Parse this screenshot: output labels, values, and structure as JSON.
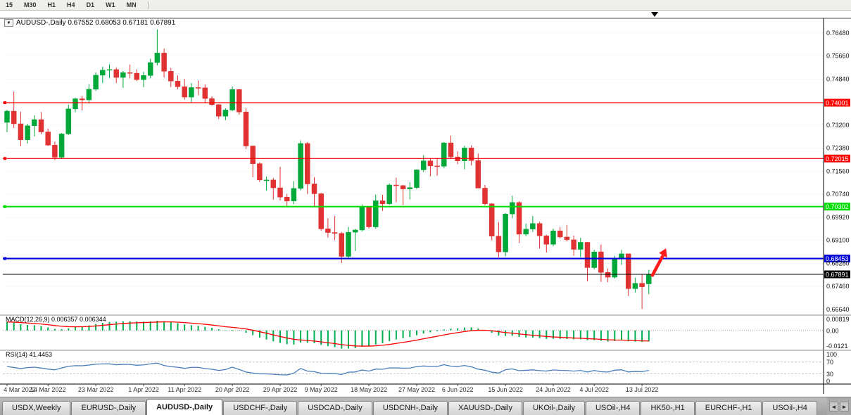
{
  "toolbar": {
    "timeframes": [
      "15",
      "M30",
      "H1",
      "H4",
      "D1",
      "W1",
      "MN"
    ]
  },
  "chart": {
    "title": "AUDUSD-,Daily 0.67552 0.68053 0.67181 0.67891",
    "collapse_icon": "▼",
    "shift_marker_icon": "▼"
  },
  "chart_data": {
    "type": "candlestick",
    "symbol": "AUDUSD-",
    "timeframe": "Daily",
    "last_bar": {
      "open": 0.67552,
      "high": 0.68053,
      "low": 0.67181,
      "close": 0.67891
    },
    "price_axis_labels": [
      "0.76480",
      "0.75660",
      "0.74840",
      "0.73200",
      "0.72380",
      "0.71560",
      "0.70740",
      "0.69920",
      "0.69100",
      "0.68280",
      "0.67460",
      "0.66640"
    ],
    "x_tick_labels": [
      "4 Mar 2022",
      "14 Mar 2022",
      "23 Mar 2022",
      "1 Apr 2022",
      "11 Apr 2022",
      "20 Apr 2022",
      "29 Apr 2022",
      "9 May 2022",
      "18 May 2022",
      "27 May 2022",
      "6 Jun 2022",
      "15 Jun 2022",
      "24 Jun 2022",
      "4 Jul 2022",
      "13 Jul 2022"
    ],
    "x_tick_indices": [
      0,
      6,
      13,
      20,
      26,
      33,
      40,
      46,
      53,
      60,
      66,
      73,
      80,
      86,
      93
    ],
    "candles_ohlc": [
      [
        0.733,
        0.7375,
        0.7295,
        0.737
      ],
      [
        0.737,
        0.744,
        0.731,
        0.7325
      ],
      [
        0.7325,
        0.7368,
        0.7245,
        0.7268
      ],
      [
        0.7268,
        0.7325,
        0.7255,
        0.7318
      ],
      [
        0.7318,
        0.7355,
        0.728,
        0.734
      ],
      [
        0.734,
        0.7367,
        0.7288,
        0.7296
      ],
      [
        0.7296,
        0.7308,
        0.7246,
        0.7249
      ],
      [
        0.7249,
        0.7262,
        0.7195,
        0.7206
      ],
      [
        0.7206,
        0.7292,
        0.72,
        0.7289
      ],
      [
        0.7289,
        0.7393,
        0.7285,
        0.7378
      ],
      [
        0.7378,
        0.7418,
        0.7366,
        0.7414
      ],
      [
        0.7414,
        0.7425,
        0.7373,
        0.741
      ],
      [
        0.741,
        0.7466,
        0.7397,
        0.7448
      ],
      [
        0.7448,
        0.7508,
        0.7442,
        0.7498
      ],
      [
        0.7498,
        0.7528,
        0.747,
        0.7516
      ],
      [
        0.7516,
        0.7537,
        0.7488,
        0.7518
      ],
      [
        0.7518,
        0.7526,
        0.747,
        0.749
      ],
      [
        0.749,
        0.7513,
        0.7453,
        0.7507
      ],
      [
        0.7507,
        0.7536,
        0.7487,
        0.7505
      ],
      [
        0.7505,
        0.7519,
        0.7477,
        0.7482
      ],
      [
        0.7482,
        0.751,
        0.7455,
        0.7497
      ],
      [
        0.7497,
        0.7557,
        0.7487,
        0.7543
      ],
      [
        0.7543,
        0.7661,
        0.7533,
        0.7577
      ],
      [
        0.7577,
        0.7593,
        0.749,
        0.7512
      ],
      [
        0.7512,
        0.7524,
        0.7456,
        0.7477
      ],
      [
        0.7477,
        0.7497,
        0.7448,
        0.7457
      ],
      [
        0.7457,
        0.7485,
        0.7411,
        0.742
      ],
      [
        0.742,
        0.747,
        0.7399,
        0.7454
      ],
      [
        0.7454,
        0.7479,
        0.7427,
        0.7453
      ],
      [
        0.7453,
        0.7465,
        0.7398,
        0.7415
      ],
      [
        0.7415,
        0.7423,
        0.7389,
        0.7393
      ],
      [
        0.7393,
        0.7395,
        0.7342,
        0.7352
      ],
      [
        0.7352,
        0.738,
        0.7338,
        0.7374
      ],
      [
        0.7374,
        0.7458,
        0.737,
        0.7447
      ],
      [
        0.7447,
        0.7449,
        0.7357,
        0.7367
      ],
      [
        0.7367,
        0.7381,
        0.7235,
        0.7246
      ],
      [
        0.7246,
        0.7247,
        0.7135,
        0.7183
      ],
      [
        0.7183,
        0.7188,
        0.7118,
        0.7125
      ],
      [
        0.7125,
        0.7137,
        0.7087,
        0.7125
      ],
      [
        0.7125,
        0.7132,
        0.7055,
        0.7097
      ],
      [
        0.7097,
        0.7172,
        0.7052,
        0.7064
      ],
      [
        0.7064,
        0.7076,
        0.7029,
        0.705
      ],
      [
        0.705,
        0.7121,
        0.7039,
        0.7095
      ],
      [
        0.7095,
        0.7266,
        0.7088,
        0.7255
      ],
      [
        0.7255,
        0.726,
        0.7075,
        0.7111
      ],
      [
        0.7111,
        0.7135,
        0.7032,
        0.7076
      ],
      [
        0.7076,
        0.7079,
        0.6945,
        0.6951
      ],
      [
        0.6951,
        0.6989,
        0.692,
        0.6938
      ],
      [
        0.6938,
        0.6997,
        0.6911,
        0.6935
      ],
      [
        0.6935,
        0.694,
        0.6829,
        0.6853
      ],
      [
        0.6853,
        0.6958,
        0.6847,
        0.6939
      ],
      [
        0.6939,
        0.6951,
        0.6872,
        0.6947
      ],
      [
        0.6947,
        0.7038,
        0.6942,
        0.7029
      ],
      [
        0.7029,
        0.7032,
        0.6952,
        0.6958
      ],
      [
        0.6958,
        0.7073,
        0.6951,
        0.7051
      ],
      [
        0.7051,
        0.7072,
        0.7015,
        0.704
      ],
      [
        0.704,
        0.7113,
        0.7037,
        0.7107
      ],
      [
        0.7107,
        0.7133,
        0.7046,
        0.7105
      ],
      [
        0.7105,
        0.7107,
        0.7036,
        0.7093
      ],
      [
        0.7093,
        0.7117,
        0.7056,
        0.7098
      ],
      [
        0.7098,
        0.7163,
        0.7093,
        0.7161
      ],
      [
        0.7161,
        0.7213,
        0.7154,
        0.7193
      ],
      [
        0.7193,
        0.7203,
        0.7138,
        0.7175
      ],
      [
        0.7175,
        0.7203,
        0.714,
        0.7174
      ],
      [
        0.7174,
        0.726,
        0.7167,
        0.7257
      ],
      [
        0.7257,
        0.7283,
        0.72,
        0.7207
      ],
      [
        0.7207,
        0.7227,
        0.7181,
        0.7193
      ],
      [
        0.7193,
        0.7247,
        0.7163,
        0.7239
      ],
      [
        0.7239,
        0.7248,
        0.7177,
        0.7194
      ],
      [
        0.7194,
        0.7219,
        0.7097,
        0.7096
      ],
      [
        0.7096,
        0.7107,
        0.7035,
        0.704
      ],
      [
        0.704,
        0.7043,
        0.691,
        0.6925
      ],
      [
        0.6925,
        0.6975,
        0.685,
        0.6869
      ],
      [
        0.6869,
        0.7007,
        0.6853,
        0.7004
      ],
      [
        0.7004,
        0.7069,
        0.6989,
        0.7045
      ],
      [
        0.7045,
        0.7049,
        0.6901,
        0.6932
      ],
      [
        0.6932,
        0.697,
        0.6925,
        0.695
      ],
      [
        0.695,
        0.6997,
        0.694,
        0.697
      ],
      [
        0.697,
        0.6976,
        0.6881,
        0.6926
      ],
      [
        0.6926,
        0.693,
        0.6867,
        0.6896
      ],
      [
        0.6896,
        0.6952,
        0.6889,
        0.6944
      ],
      [
        0.6944,
        0.6958,
        0.6917,
        0.6922
      ],
      [
        0.6922,
        0.6965,
        0.6906,
        0.6912
      ],
      [
        0.6912,
        0.6927,
        0.6855,
        0.6878
      ],
      [
        0.6878,
        0.6919,
        0.685,
        0.6903
      ],
      [
        0.6903,
        0.6905,
        0.6764,
        0.6813
      ],
      [
        0.6813,
        0.6876,
        0.6807,
        0.6869
      ],
      [
        0.6869,
        0.6895,
        0.6762,
        0.6796
      ],
      [
        0.6796,
        0.681,
        0.6761,
        0.6779
      ],
      [
        0.6779,
        0.6855,
        0.6774,
        0.6845
      ],
      [
        0.6845,
        0.6876,
        0.6823,
        0.6862
      ],
      [
        0.6862,
        0.6863,
        0.6712,
        0.6738
      ],
      [
        0.6738,
        0.6777,
        0.6724,
        0.6757
      ],
      [
        0.6757,
        0.6788,
        0.6666,
        0.6745
      ],
      [
        0.67552,
        0.68053,
        0.67181,
        0.67891
      ]
    ],
    "horizontal_lines": [
      {
        "value": 0.74001,
        "label": "0.74001",
        "color": "#FF0000",
        "width": 1.2
      },
      {
        "value": 0.72015,
        "label": "0.72015",
        "color": "#FF0000",
        "width": 1.2
      },
      {
        "value": 0.70302,
        "label": "0.70302",
        "color": "#00DD00",
        "width": 2
      },
      {
        "value": 0.68453,
        "label": "0.68453",
        "color": "#0000D8",
        "width": 2.2
      }
    ],
    "bid_price": {
      "value": 0.67891,
      "label": "0.67891",
      "color": "#000000"
    },
    "annotations": {
      "trend_arrow": {
        "shape": "up-right-arrow",
        "color": "#FF1A1A"
      }
    },
    "colors": {
      "up": "#00A83A",
      "down": "#E03232",
      "background": "#FFFFFF",
      "axis_text": "#111111"
    }
  },
  "indicators": {
    "macd": {
      "label": "MACD(12,26,9) 0.006357 0.006344",
      "fast": 12,
      "slow": 26,
      "signal": 9,
      "axis_labels": [
        "0.00819",
        "0.00",
        "-0.0121"
      ],
      "axis_values": [
        0.00819,
        0,
        -0.0121
      ],
      "histogram_color": "#00B050",
      "signal_color": "#FF0000"
    },
    "rsi": {
      "label": "RSI(14) 41.4453",
      "period": 14,
      "value": 41.4453,
      "axis_labels": [
        "100",
        "70",
        "30",
        "0"
      ],
      "axis_values": [
        100,
        70,
        30,
        0
      ],
      "levels": [
        70,
        30
      ],
      "line_color": "#4A7EBB"
    }
  },
  "bottom_tabs": {
    "scroll_left": "◄",
    "scroll_right": "►",
    "tabs": [
      {
        "label": "USDX,Weekly",
        "active": false
      },
      {
        "label": "EURUSD-,Daily",
        "active": false
      },
      {
        "label": "AUDUSD-,Daily",
        "active": true
      },
      {
        "label": "USDCHF-,Daily",
        "active": false
      },
      {
        "label": "USDCAD-,Daily",
        "active": false
      },
      {
        "label": "USDCNH-,Daily",
        "active": false
      },
      {
        "label": "XAUUSD-,Daily",
        "active": false
      },
      {
        "label": "UKOil-,Daily",
        "active": false
      },
      {
        "label": "USOil-,H4",
        "active": false
      },
      {
        "label": "HK50-,H1",
        "active": false
      },
      {
        "label": "EURCHF-,H1",
        "active": false
      },
      {
        "label": "USOil-,H4",
        "active": false
      }
    ]
  }
}
